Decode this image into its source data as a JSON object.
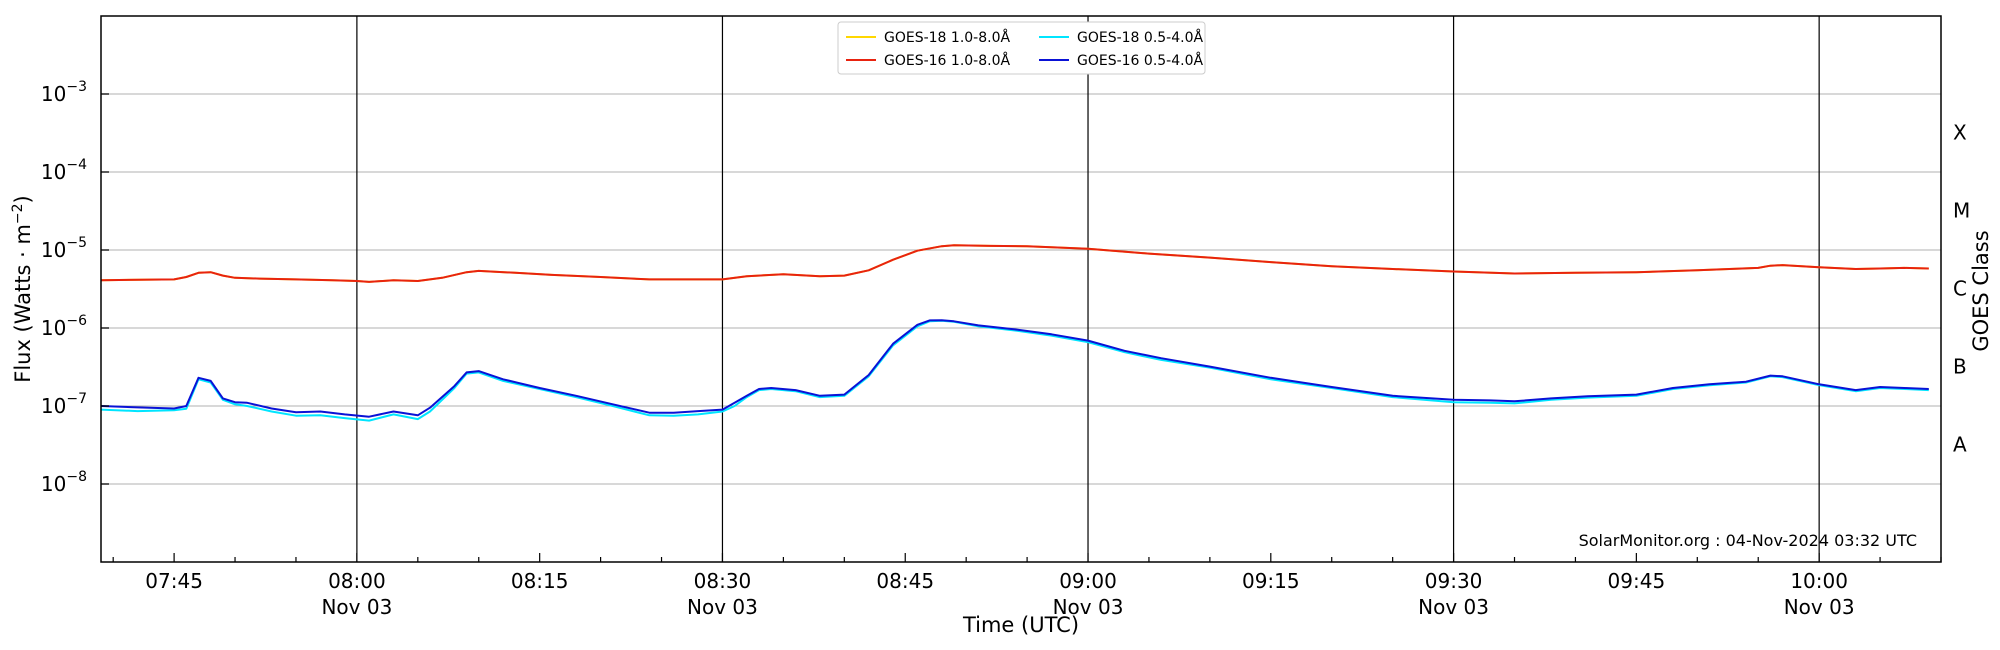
{
  "chart_data": {
    "type": "line",
    "xlabel": "Time (UTC)",
    "ylabel_main": "Flux (Watts · m",
    "ylabel_sup": "−2",
    "ylabel_close": ")",
    "right_axis_label": "GOES Class",
    "yscale": "log",
    "xlim": [
      "07:39",
      "10:10"
    ],
    "ylim": [
      1e-09,
      0.01
    ],
    "grid": "horizontal",
    "legend_position": "top-center",
    "watermark": "SolarMonitor.org : 04-Nov-2024 03:32 UTC",
    "x_ticks": [
      {
        "time": "07:45",
        "label": "07:45",
        "date": ""
      },
      {
        "time": "08:00",
        "label": "08:00",
        "date": "Nov 03"
      },
      {
        "time": "08:15",
        "label": "08:15",
        "date": ""
      },
      {
        "time": "08:30",
        "label": "08:30",
        "date": "Nov 03"
      },
      {
        "time": "08:45",
        "label": "08:45",
        "date": ""
      },
      {
        "time": "09:00",
        "label": "09:00",
        "date": "Nov 03"
      },
      {
        "time": "09:15",
        "label": "09:15",
        "date": ""
      },
      {
        "time": "09:30",
        "label": "09:30",
        "date": "Nov 03"
      },
      {
        "time": "09:45",
        "label": "09:45",
        "date": ""
      },
      {
        "time": "10:00",
        "label": "10:00",
        "date": "Nov 03"
      }
    ],
    "vertical_lines": [
      "08:00",
      "08:30",
      "09:00",
      "09:30",
      "10:00"
    ],
    "y_ticks": [
      {
        "value": 1e-08,
        "base": "10",
        "exp": "−8"
      },
      {
        "value": 1e-07,
        "base": "10",
        "exp": "−7"
      },
      {
        "value": 1e-06,
        "base": "10",
        "exp": "−6"
      },
      {
        "value": 1e-05,
        "base": "10",
        "exp": "−5"
      },
      {
        "value": 0.0001,
        "base": "10",
        "exp": "−4"
      },
      {
        "value": 0.001,
        "base": "10",
        "exp": "−3"
      }
    ],
    "goes_classes": [
      {
        "label": "A",
        "value": 3.2e-08
      },
      {
        "label": "B",
        "value": 3.2e-07
      },
      {
        "label": "C",
        "value": 3.2e-06
      },
      {
        "label": "M",
        "value": 3.2e-05
      },
      {
        "label": "X",
        "value": 0.00032
      }
    ],
    "series": [
      {
        "name": "GOES-18 1.0-8.0Å",
        "color": "#ffd700",
        "x": [
          "07:39",
          "07:45",
          "07:46",
          "07:47",
          "07:48",
          "07:49",
          "07:50",
          "07:52",
          "07:55",
          "07:58",
          "08:00",
          "08:01",
          "08:03",
          "08:05",
          "08:07",
          "08:09",
          "08:10",
          "08:13",
          "08:16",
          "08:20",
          "08:24",
          "08:27",
          "08:30",
          "08:32",
          "08:35",
          "08:38",
          "08:40",
          "08:42",
          "08:44",
          "08:46",
          "08:48",
          "08:49",
          "08:52",
          "08:55",
          "09:00",
          "09:05",
          "09:10",
          "09:15",
          "09:20",
          "09:25",
          "09:30",
          "09:35",
          "09:40",
          "09:45",
          "09:50",
          "09:55",
          "09:56",
          "09:57",
          "10:00",
          "10:03",
          "10:05",
          "10:07",
          "10:09"
        ],
        "y": [
          4.1e-06,
          4.2e-06,
          4.5e-06,
          5.1e-06,
          5.2e-06,
          4.7e-06,
          4.4e-06,
          4.3e-06,
          4.2e-06,
          4.1e-06,
          4e-06,
          3.9e-06,
          4.1e-06,
          4e-06,
          4.4e-06,
          5.2e-06,
          5.4e-06,
          5.1e-06,
          4.8e-06,
          4.5e-06,
          4.2e-06,
          4.2e-06,
          4.2e-06,
          4.6e-06,
          4.9e-06,
          4.6e-06,
          4.7e-06,
          5.5e-06,
          7.5e-06,
          9.8e-06,
          1.12e-05,
          1.15e-05,
          1.13e-05,
          1.12e-05,
          1.04e-05,
          9e-06,
          8e-06,
          7e-06,
          6.2e-06,
          5.7e-06,
          5.3e-06,
          5e-06,
          5.1e-06,
          5.2e-06,
          5.5e-06,
          5.9e-06,
          6.3e-06,
          6.4e-06,
          6e-06,
          5.7e-06,
          5.8e-06,
          5.9e-06,
          5.8e-06
        ]
      },
      {
        "name": "GOES-16 1.0-8.0Å",
        "color": "#e8230f",
        "x": [
          "07:39",
          "07:45",
          "07:46",
          "07:47",
          "07:48",
          "07:49",
          "07:50",
          "07:52",
          "07:55",
          "07:58",
          "08:00",
          "08:01",
          "08:03",
          "08:05",
          "08:07",
          "08:09",
          "08:10",
          "08:13",
          "08:16",
          "08:20",
          "08:24",
          "08:27",
          "08:30",
          "08:32",
          "08:35",
          "08:38",
          "08:40",
          "08:42",
          "08:44",
          "08:46",
          "08:48",
          "08:49",
          "08:52",
          "08:55",
          "09:00",
          "09:05",
          "09:10",
          "09:15",
          "09:20",
          "09:25",
          "09:30",
          "09:35",
          "09:40",
          "09:45",
          "09:50",
          "09:55",
          "09:56",
          "09:57",
          "10:00",
          "10:03",
          "10:05",
          "10:07",
          "10:09"
        ],
        "y": [
          4.1e-06,
          4.2e-06,
          4.5e-06,
          5.1e-06,
          5.2e-06,
          4.7e-06,
          4.4e-06,
          4.3e-06,
          4.2e-06,
          4.1e-06,
          4e-06,
          3.9e-06,
          4.1e-06,
          4e-06,
          4.4e-06,
          5.2e-06,
          5.4e-06,
          5.1e-06,
          4.8e-06,
          4.5e-06,
          4.2e-06,
          4.2e-06,
          4.2e-06,
          4.6e-06,
          4.9e-06,
          4.6e-06,
          4.7e-06,
          5.5e-06,
          7.5e-06,
          9.8e-06,
          1.12e-05,
          1.15e-05,
          1.13e-05,
          1.12e-05,
          1.04e-05,
          9e-06,
          8e-06,
          7e-06,
          6.2e-06,
          5.7e-06,
          5.3e-06,
          5e-06,
          5.1e-06,
          5.2e-06,
          5.5e-06,
          5.9e-06,
          6.3e-06,
          6.4e-06,
          6e-06,
          5.7e-06,
          5.8e-06,
          5.9e-06,
          5.8e-06
        ]
      },
      {
        "name": "GOES-18 0.5-4.0Å",
        "color": "#00e5ff",
        "x": [
          "07:39",
          "07:42",
          "07:45",
          "07:46",
          "07:47",
          "07:48",
          "07:49",
          "07:50",
          "07:51",
          "07:53",
          "07:55",
          "07:57",
          "07:59",
          "08:01",
          "08:03",
          "08:05",
          "08:06",
          "08:08",
          "08:09",
          "08:10",
          "08:12",
          "08:15",
          "08:18",
          "08:21",
          "08:24",
          "08:26",
          "08:28",
          "08:30",
          "08:31",
          "08:32",
          "08:33",
          "08:34",
          "08:36",
          "08:38",
          "08:40",
          "08:42",
          "08:44",
          "08:46",
          "08:47",
          "08:48",
          "08:49",
          "08:51",
          "08:54",
          "08:57",
          "09:00",
          "09:03",
          "09:06",
          "09:10",
          "09:15",
          "09:20",
          "09:25",
          "09:30",
          "09:33",
          "09:35",
          "09:38",
          "09:41",
          "09:45",
          "09:48",
          "09:51",
          "09:54",
          "09:56",
          "09:57",
          "10:00",
          "10:03",
          "10:05",
          "10:07",
          "10:09"
        ],
        "y": [
          9e-08,
          8.6e-08,
          8.8e-08,
          9.2e-08,
          2.2e-07,
          2e-07,
          1.2e-07,
          1.05e-07,
          1e-07,
          8.5e-08,
          7.5e-08,
          7.6e-08,
          7e-08,
          6.5e-08,
          7.8e-08,
          6.8e-08,
          8.5e-08,
          1.7e-07,
          2.6e-07,
          2.7e-07,
          2.1e-07,
          1.65e-07,
          1.3e-07,
          1e-07,
          7.6e-08,
          7.5e-08,
          7.8e-08,
          8.5e-08,
          1e-07,
          1.3e-07,
          1.6e-07,
          1.65e-07,
          1.55e-07,
          1.3e-07,
          1.35e-07,
          2.4e-07,
          6e-07,
          1.05e-06,
          1.22e-06,
          1.24e-06,
          1.2e-06,
          1.05e-06,
          9.3e-07,
          8e-07,
          6.6e-07,
          4.9e-07,
          3.9e-07,
          3.1e-07,
          2.2e-07,
          1.7e-07,
          1.3e-07,
          1.12e-07,
          1.1e-07,
          1.08e-07,
          1.2e-07,
          1.28e-07,
          1.35e-07,
          1.65e-07,
          1.85e-07,
          2e-07,
          2.4e-07,
          2.35e-07,
          1.85e-07,
          1.55e-07,
          1.7e-07,
          1.65e-07,
          1.6e-07
        ]
      },
      {
        "name": "GOES-16 0.5-4.0Å",
        "color": "#0a12d6",
        "x": [
          "07:39",
          "07:42",
          "07:45",
          "07:46",
          "07:47",
          "07:48",
          "07:49",
          "07:50",
          "07:51",
          "07:53",
          "07:55",
          "07:57",
          "07:59",
          "08:01",
          "08:03",
          "08:05",
          "08:06",
          "08:08",
          "08:09",
          "08:10",
          "08:12",
          "08:15",
          "08:18",
          "08:21",
          "08:24",
          "08:26",
          "08:28",
          "08:30",
          "08:31",
          "08:32",
          "08:33",
          "08:34",
          "08:36",
          "08:38",
          "08:40",
          "08:42",
          "08:44",
          "08:46",
          "08:47",
          "08:48",
          "08:49",
          "08:51",
          "08:54",
          "08:57",
          "09:00",
          "09:03",
          "09:06",
          "09:10",
          "09:15",
          "09:20",
          "09:25",
          "09:30",
          "09:33",
          "09:35",
          "09:38",
          "09:41",
          "09:45",
          "09:48",
          "09:51",
          "09:54",
          "09:56",
          "09:57",
          "10:00",
          "10:03",
          "10:05",
          "10:07",
          "10:09"
        ],
        "y": [
          1e-07,
          9.6e-08,
          9.3e-08,
          1e-07,
          2.3e-07,
          2.1e-07,
          1.25e-07,
          1.12e-07,
          1.1e-07,
          9.3e-08,
          8.3e-08,
          8.5e-08,
          7.8e-08,
          7.3e-08,
          8.5e-08,
          7.6e-08,
          9.5e-08,
          1.8e-07,
          2.7e-07,
          2.8e-07,
          2.2e-07,
          1.7e-07,
          1.35e-07,
          1.05e-07,
          8.2e-08,
          8.2e-08,
          8.6e-08,
          9e-08,
          1.1e-07,
          1.35e-07,
          1.65e-07,
          1.7e-07,
          1.6e-07,
          1.35e-07,
          1.4e-07,
          2.5e-07,
          6.3e-07,
          1.1e-06,
          1.25e-06,
          1.26e-06,
          1.22e-06,
          1.08e-06,
          9.6e-07,
          8.3e-07,
          6.9e-07,
          5.1e-07,
          4.1e-07,
          3.2e-07,
          2.3e-07,
          1.75e-07,
          1.35e-07,
          1.2e-07,
          1.18e-07,
          1.15e-07,
          1.25e-07,
          1.33e-07,
          1.4e-07,
          1.7e-07,
          1.9e-07,
          2.05e-07,
          2.45e-07,
          2.4e-07,
          1.9e-07,
          1.6e-07,
          1.75e-07,
          1.7e-07,
          1.65e-07
        ]
      }
    ]
  }
}
